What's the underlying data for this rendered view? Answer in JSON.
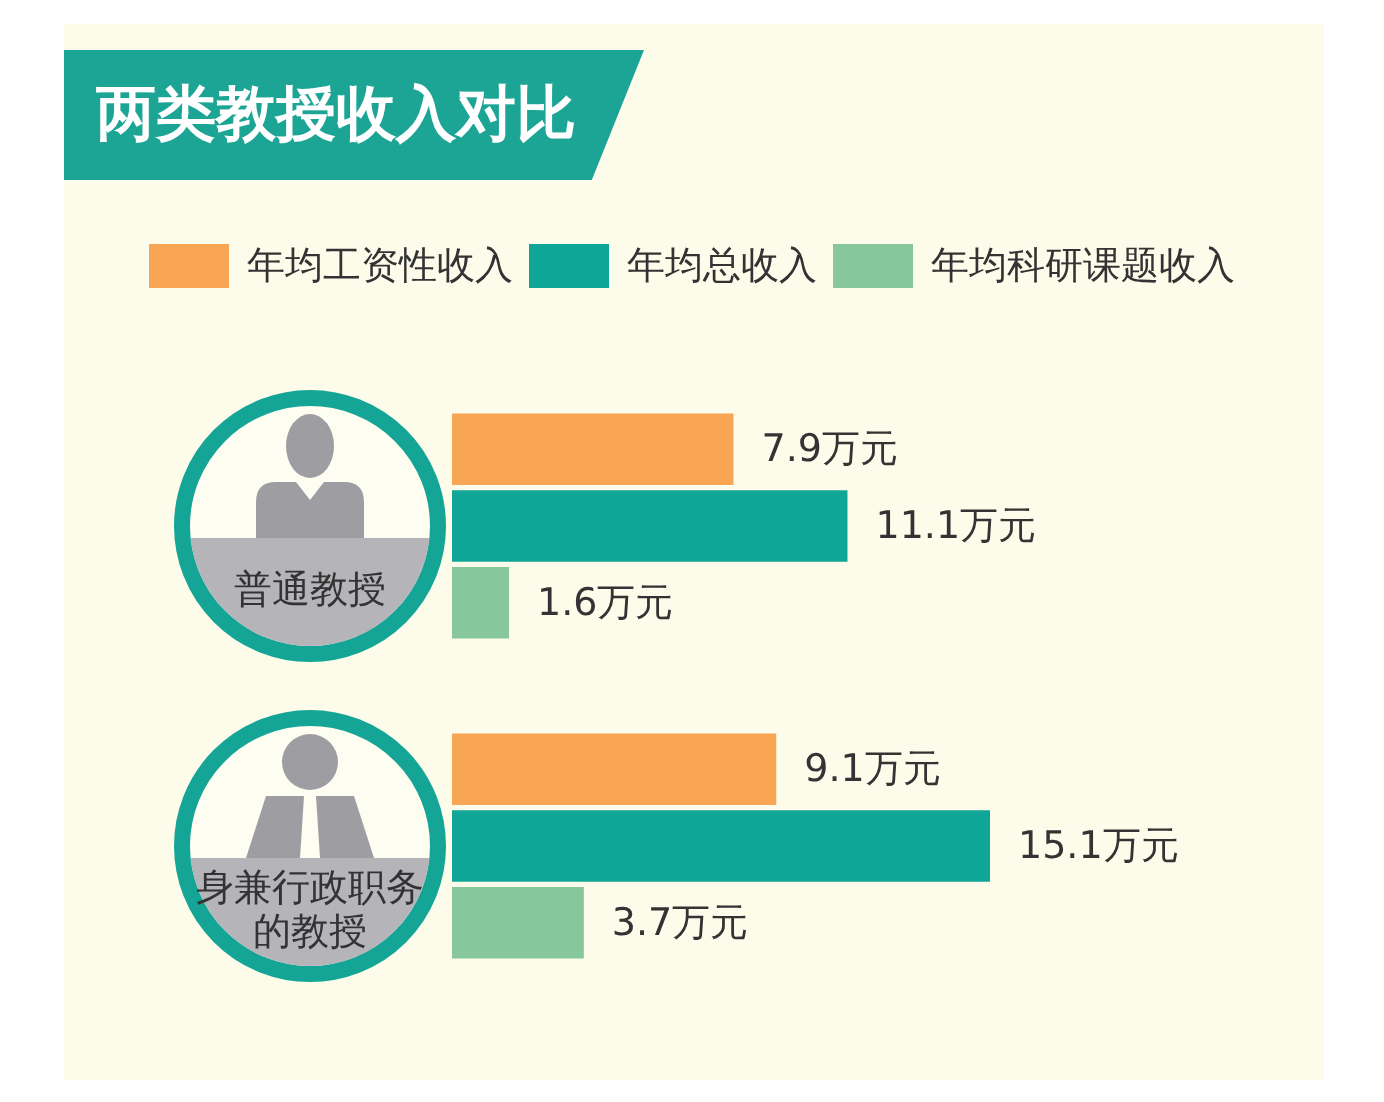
{
  "chart_data": {
    "type": "bar",
    "orientation": "horizontal",
    "title": "两类教授收入对比",
    "categories": [
      "普通教授",
      "身兼行政职务的教授"
    ],
    "series": [
      {
        "name": "年均工资性收入",
        "color": "#f8a653",
        "values": [
          7.9,
          9.1
        ],
        "value_labels": [
          "7.9万元",
          "9.1万元"
        ]
      },
      {
        "name": "年均总收入",
        "color": "#10a697",
        "values": [
          11.1,
          15.1
        ],
        "value_labels": [
          "11.1万元",
          "15.1万元"
        ]
      },
      {
        "name": "年均科研课题收入",
        "color": "#86c79c",
        "values": [
          1.6,
          3.7
        ],
        "value_labels": [
          "1.6万元",
          "3.7万元"
        ]
      }
    ],
    "legend": "top"
  }
}
